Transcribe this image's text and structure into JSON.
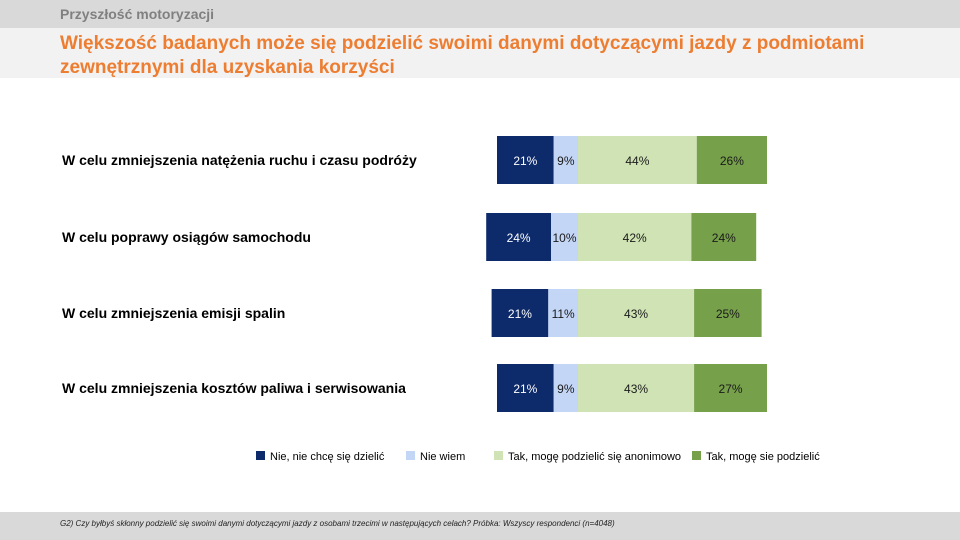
{
  "header": {
    "section_title": "Przyszłość motoryzacji",
    "main_title": "Większość badanych może się podzielić swoimi danymi dotyczącymi jazdy z podmiotami zewnętrznymi dla uzyskania korzyści"
  },
  "footer": {
    "note": "G2) Czy byłbyś skłonny podzielić się swoimi danymi dotyczącymi jazdy z osobami trzecimi w następujących celach? Próbka: Wszyscy respondenci (n=4048)"
  },
  "colors": {
    "title": "#ed7d31",
    "section": "#808080",
    "series": [
      "#0d2a6b",
      "#c4d6f5",
      "#cfe3b4",
      "#76a04a"
    ],
    "label_light": "#ffffff",
    "label_dark": "#1a1a1a"
  },
  "chart_data": {
    "type": "bar",
    "orientation": "horizontal",
    "stacked": true,
    "categories": [
      "W celu zmniejszenia natężenia ruchu i czasu podróży",
      "W celu poprawy osiągów samochodu",
      "W celu zmniejszenia emisji spalin",
      "W celu zmniejszenia kosztów paliwa i serwisowania"
    ],
    "series": [
      {
        "name": "Nie, nie chcę się dzielić",
        "values": [
          21,
          24,
          21,
          21
        ]
      },
      {
        "name": "Nie wiem",
        "values": [
          9,
          10,
          11,
          9
        ]
      },
      {
        "name": "Tak, mogę podzielić się anonimowo",
        "values": [
          44,
          42,
          43,
          43
        ]
      },
      {
        "name": "Tak, mogę sie podzielić",
        "values": [
          26,
          24,
          25,
          27
        ]
      }
    ],
    "value_suffix": "%",
    "diverging_split_after_series": 1,
    "legend_position": "bottom",
    "grid": false
  }
}
